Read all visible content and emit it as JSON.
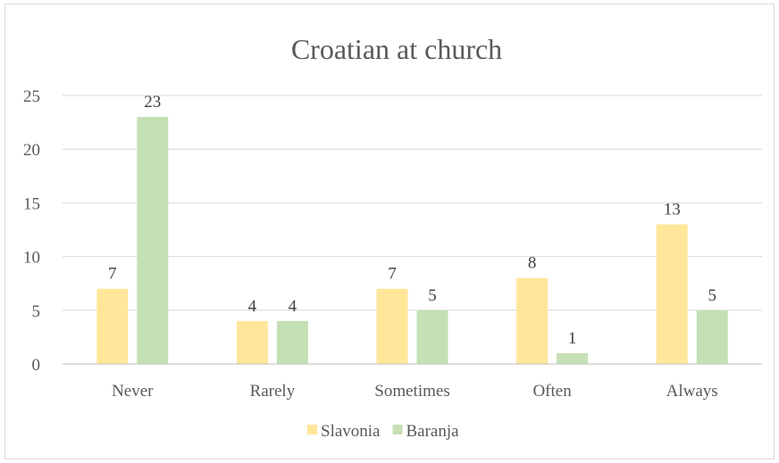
{
  "chart_data": {
    "type": "bar",
    "title": "Croatian at church",
    "xlabel": "",
    "ylabel": "",
    "categories": [
      "Never",
      "Rarely",
      "Sometimes",
      "Often",
      "Always"
    ],
    "series": [
      {
        "name": "Slavonia",
        "values": [
          7,
          4,
          7,
          8,
          13
        ],
        "color": "#ffe699"
      },
      {
        "name": "Baranja",
        "values": [
          23,
          4,
          5,
          1,
          5
        ],
        "color": "#c5e0b4"
      }
    ],
    "ylim": [
      0,
      25
    ],
    "yticks": [
      0,
      5,
      10,
      15,
      20,
      25
    ],
    "grid": true,
    "legend_position": "bottom",
    "data_labels": true
  },
  "colors": {
    "gridline": "#d9d9d9",
    "axis": "#bfbfbf",
    "text": "#595959"
  }
}
